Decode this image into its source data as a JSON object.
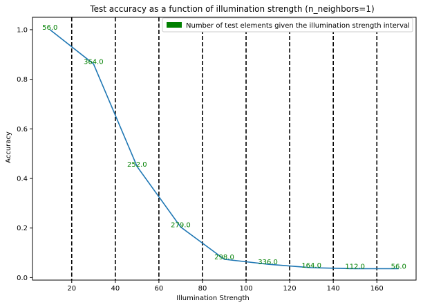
{
  "chart_data": {
    "type": "line",
    "title": "Test accuracy as a function of illumination strength (n_neighbors=1)",
    "xlabel": "Illumination Strength",
    "ylabel": "Accuracy",
    "xlim": [
      2,
      178
    ],
    "ylim": [
      -0.01,
      1.05
    ],
    "xticks": [
      20,
      40,
      60,
      80,
      100,
      120,
      140,
      160
    ],
    "yticks": [
      0.0,
      0.2,
      0.4,
      0.6,
      0.8,
      1.0
    ],
    "grid": false,
    "legend_position": "top-right",
    "colors": {
      "line": "#1f77b4",
      "counts": "#008000",
      "dividers": "#000000"
    },
    "series": [
      {
        "x": [
          10,
          30,
          50,
          70,
          90,
          110,
          130,
          150,
          170
        ],
        "values": [
          1.0,
          0.862,
          0.448,
          0.204,
          0.074,
          0.054,
          0.04,
          0.036,
          0.036
        ]
      }
    ],
    "vertical_lines": [
      20,
      40,
      60,
      80,
      100,
      120,
      140,
      160
    ],
    "counts": {
      "legend_label": "Number of test elements given the illumination strength interval",
      "labels": [
        {
          "x": 10,
          "y": 1.0,
          "text": "56.0"
        },
        {
          "x": 30,
          "y": 0.862,
          "text": "364.0"
        },
        {
          "x": 50,
          "y": 0.448,
          "text": "252.0"
        },
        {
          "x": 70,
          "y": 0.204,
          "text": "279.0"
        },
        {
          "x": 90,
          "y": 0.074,
          "text": "298.0"
        },
        {
          "x": 110,
          "y": 0.054,
          "text": "336.0"
        },
        {
          "x": 130,
          "y": 0.04,
          "text": "164.0"
        },
        {
          "x": 150,
          "y": 0.036,
          "text": "112.0"
        },
        {
          "x": 170,
          "y": 0.036,
          "text": "56.0"
        }
      ]
    }
  }
}
